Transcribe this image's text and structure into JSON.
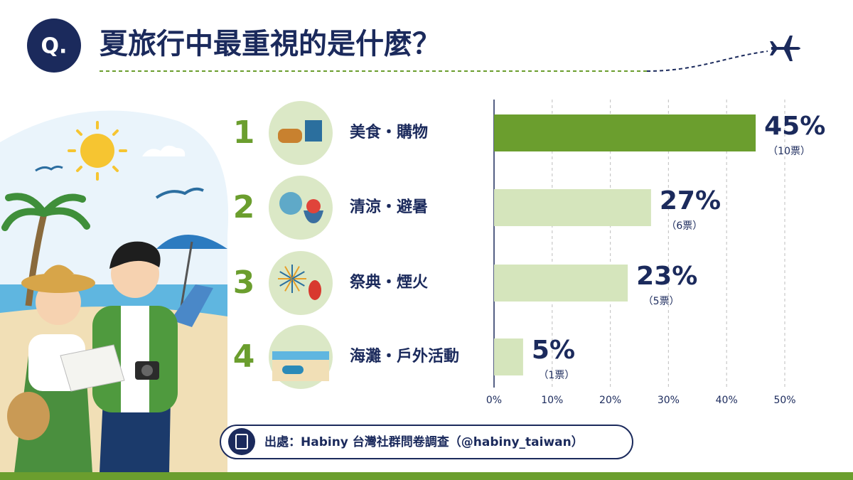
{
  "badge": "Q.",
  "chart_data": {
    "type": "bar",
    "orientation": "horizontal",
    "title": "夏旅行中最重視的是什麼？",
    "ranks": [
      1,
      2,
      3,
      4
    ],
    "categories": [
      "美食・購物",
      "清涼・避暑",
      "祭典・煙火",
      "海灘・戶外活動"
    ],
    "values": [
      45,
      27,
      23,
      5
    ],
    "value_labels": [
      "45%",
      "27%",
      "23%",
      "5%"
    ],
    "vote_labels": [
      "（10票）",
      "（6票）",
      "（5票）",
      "（1票）"
    ],
    "colors": [
      "#6b9e2e",
      "#d5e5bc",
      "#d5e5bc",
      "#d5e5bc"
    ],
    "xlim": [
      0,
      50
    ],
    "xticks": [
      {
        "value": 0,
        "label": "0%"
      },
      {
        "value": 10,
        "label": "10%"
      },
      {
        "value": 20,
        "label": "20%"
      },
      {
        "value": 30,
        "label": "30%"
      },
      {
        "value": 40,
        "label": "40%"
      },
      {
        "value": 50,
        "label": "50%"
      }
    ],
    "grid": true
  },
  "source": "出處：Habiny 台灣社群問卷調查（@habiny_taiwan）"
}
